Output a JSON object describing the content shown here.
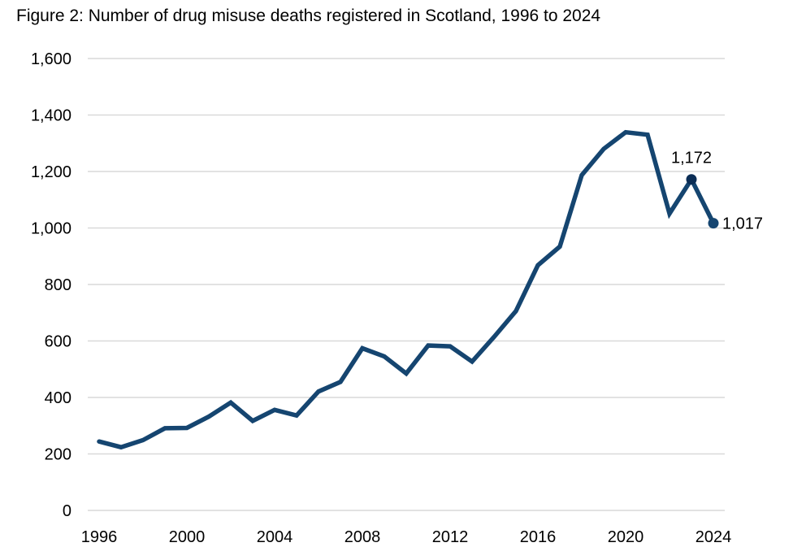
{
  "chart_data": {
    "type": "line",
    "title": "Figure 2: Number of drug misuse deaths registered in Scotland, 1996 to 2024",
    "xlabel": "",
    "ylabel": "",
    "ylim": [
      0,
      1600
    ],
    "xlim": [
      1996,
      2024
    ],
    "grid": true,
    "legend": "none",
    "y_ticks": [
      0,
      200,
      400,
      600,
      800,
      1000,
      1200,
      1400,
      1600
    ],
    "y_tick_labels": [
      "0",
      "200",
      "400",
      "600",
      "800",
      "1,000",
      "1,200",
      "1,400",
      "1,600"
    ],
    "x_ticks": [
      1996,
      2000,
      2004,
      2008,
      2012,
      2016,
      2020,
      2024
    ],
    "x_tick_labels": [
      "1996",
      "2000",
      "2004",
      "2008",
      "2012",
      "2016",
      "2020",
      "2024"
    ],
    "colors": {
      "line": "#154570",
      "highlight_marker": "#0b2d55",
      "gridline": "#d9d9d9"
    },
    "series": [
      {
        "name": "Drug misuse deaths",
        "x": [
          1996,
          1997,
          1998,
          1999,
          2000,
          2001,
          2002,
          2003,
          2004,
          2005,
          2006,
          2007,
          2008,
          2009,
          2010,
          2011,
          2012,
          2013,
          2014,
          2015,
          2016,
          2017,
          2018,
          2019,
          2020,
          2021,
          2022,
          2023,
          2024
        ],
        "values": [
          244,
          224,
          249,
          291,
          292,
          332,
          382,
          317,
          356,
          336,
          421,
          455,
          574,
          545,
          485,
          584,
          581,
          527,
          614,
          706,
          868,
          934,
          1187,
          1280,
          1339,
          1330,
          1051,
          1172,
          1017
        ]
      }
    ],
    "annotations": [
      {
        "x": 2023,
        "value": 1172,
        "label": "1,172",
        "position": "above"
      },
      {
        "x": 2024,
        "value": 1017,
        "label": "1,017",
        "position": "right"
      }
    ]
  }
}
